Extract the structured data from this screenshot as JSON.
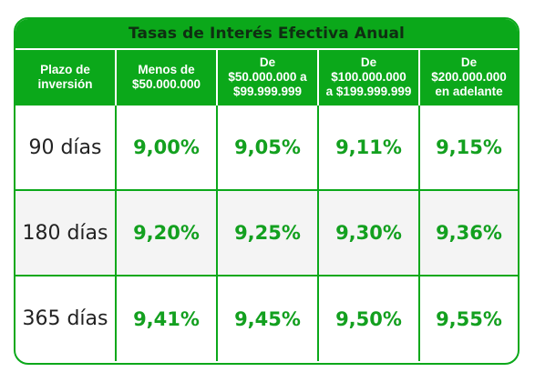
{
  "title": "Tasas de Interés Efectiva Anual",
  "colors": {
    "brand_green": "#0ba81a",
    "rate_text": "#13a01f",
    "alt_row": "#f4f4f4"
  },
  "headers": [
    [
      "Plazo de",
      "inversión"
    ],
    [
      "Menos de",
      "$50.000.000"
    ],
    [
      "De",
      "$50.000.000 a",
      "$99.999.999"
    ],
    [
      "De",
      "$100.000.000",
      "a $199.999.999"
    ],
    [
      "De",
      "$200.000.000",
      "en adelante"
    ]
  ],
  "rows": [
    {
      "term": "90 días",
      "rates": [
        "9,00%",
        "9,05%",
        "9,11%",
        "9,15%"
      ]
    },
    {
      "term": "180 días",
      "rates": [
        "9,20%",
        "9,25%",
        "9,30%",
        "9,36%"
      ]
    },
    {
      "term": "365 días",
      "rates": [
        "9,41%",
        "9,45%",
        "9,50%",
        "9,55%"
      ]
    }
  ]
}
